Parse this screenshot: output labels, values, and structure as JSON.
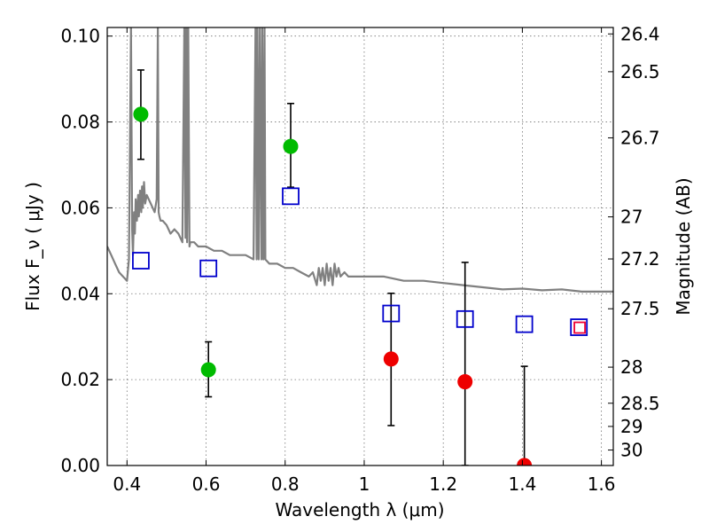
{
  "chart_data": {
    "type": "scatter",
    "xlabel": "Wavelength  λ (μm)",
    "ylabel": "Flux  F_ν  ( μJy )",
    "ylabel_right": "Magnitude (AB)",
    "xlim": [
      0.35,
      1.63
    ],
    "ylim": [
      0.0,
      0.102
    ],
    "grid": true,
    "x_ticks": [
      0.4,
      0.6,
      0.8,
      1.0,
      1.2,
      1.4,
      1.6
    ],
    "x_tick_labels": [
      "0.4",
      "0.6",
      "0.8",
      "1",
      "1.2",
      "1.4",
      "1.6"
    ],
    "y_ticks": [
      0.0,
      0.02,
      0.04,
      0.06,
      0.08,
      0.1
    ],
    "y_tick_labels": [
      "0.00",
      "0.02",
      "0.04",
      "0.06",
      "0.08",
      "0.10"
    ],
    "mag_ticks": [
      {
        "label": "26.4",
        "flux": 0.1005
      },
      {
        "label": "26.5",
        "flux": 0.0917
      },
      {
        "label": "26.7",
        "flux": 0.0763
      },
      {
        "label": "27",
        "flux": 0.0579
      },
      {
        "label": "27.2",
        "flux": 0.0481
      },
      {
        "label": "27.5",
        "flux": 0.0365
      },
      {
        "label": "28",
        "flux": 0.0229
      },
      {
        "label": "28.5",
        "flux": 0.0145
      },
      {
        "label": "29",
        "flux": 0.0091
      },
      {
        "label": "30",
        "flux": 0.0036
      }
    ],
    "series": [
      {
        "marker": "filled-circle",
        "color": "#00bb00",
        "points": [
          {
            "x": 0.435,
            "y": 0.0818,
            "err_low": 0.0713,
            "err_high": 0.0921
          },
          {
            "x": 0.606,
            "y": 0.0223,
            "err_low": 0.016,
            "err_high": 0.0288
          },
          {
            "x": 0.814,
            "y": 0.0743,
            "err_low": 0.0648,
            "err_high": 0.0843
          }
        ]
      },
      {
        "marker": "filled-circle",
        "color": "#ee0000",
        "points": [
          {
            "x": 1.068,
            "y": 0.0248,
            "err_low": 0.0093,
            "err_high": 0.0401
          },
          {
            "x": 1.255,
            "y": 0.0195,
            "err_low": 0.0,
            "err_high": 0.0473
          },
          {
            "x": 1.405,
            "y": 0.0,
            "err_low": 0.0,
            "err_high": 0.0231
          }
        ]
      },
      {
        "marker": "open-square",
        "color": "#0000cc",
        "points": [
          {
            "x": 0.435,
            "y": 0.0477
          },
          {
            "x": 0.606,
            "y": 0.0459
          },
          {
            "x": 0.814,
            "y": 0.0627
          },
          {
            "x": 1.068,
            "y": 0.0354
          },
          {
            "x": 1.255,
            "y": 0.0341
          },
          {
            "x": 1.405,
            "y": 0.0329
          },
          {
            "x": 1.543,
            "y": 0.0322
          }
        ]
      },
      {
        "marker": "open-square-small",
        "color": "#ee0033",
        "points": [
          {
            "x": 1.545,
            "y": 0.0321
          }
        ]
      }
    ],
    "spectrum": {
      "color": "#808080",
      "x": [
        0.35,
        0.36,
        0.37,
        0.38,
        0.39,
        0.4,
        0.405,
        0.41,
        0.413,
        0.415,
        0.418,
        0.42,
        0.422,
        0.425,
        0.428,
        0.43,
        0.433,
        0.436,
        0.438,
        0.44,
        0.443,
        0.446,
        0.45,
        0.455,
        0.46,
        0.465,
        0.47,
        0.475,
        0.478,
        0.48,
        0.482,
        0.485,
        0.49,
        0.5,
        0.51,
        0.52,
        0.53,
        0.54,
        0.545,
        0.548,
        0.55,
        0.552,
        0.555,
        0.558,
        0.56,
        0.57,
        0.58,
        0.6,
        0.62,
        0.64,
        0.66,
        0.68,
        0.7,
        0.72,
        0.725,
        0.728,
        0.73,
        0.733,
        0.736,
        0.74,
        0.742,
        0.745,
        0.748,
        0.75,
        0.76,
        0.78,
        0.8,
        0.82,
        0.84,
        0.86,
        0.87,
        0.88,
        0.885,
        0.89,
        0.895,
        0.9,
        0.905,
        0.91,
        0.915,
        0.92,
        0.925,
        0.93,
        0.935,
        0.94,
        0.95,
        0.96,
        0.98,
        1.0,
        1.05,
        1.1,
        1.15,
        1.2,
        1.25,
        1.3,
        1.35,
        1.4,
        1.45,
        1.5,
        1.55,
        1.6,
        1.63
      ],
      "y": [
        0.051,
        0.049,
        0.047,
        0.045,
        0.044,
        0.043,
        0.048,
        0.102,
        0.055,
        0.049,
        0.059,
        0.054,
        0.062,
        0.057,
        0.063,
        0.058,
        0.064,
        0.059,
        0.065,
        0.06,
        0.066,
        0.061,
        0.063,
        0.062,
        0.061,
        0.06,
        0.059,
        0.062,
        0.102,
        0.059,
        0.058,
        0.057,
        0.057,
        0.056,
        0.054,
        0.055,
        0.054,
        0.052,
        0.102,
        0.053,
        0.102,
        0.052,
        0.102,
        0.051,
        0.052,
        0.052,
        0.051,
        0.051,
        0.05,
        0.05,
        0.049,
        0.049,
        0.049,
        0.048,
        0.102,
        0.048,
        0.102,
        0.048,
        0.102,
        0.048,
        0.102,
        0.048,
        0.102,
        0.048,
        0.047,
        0.047,
        0.046,
        0.046,
        0.045,
        0.044,
        0.045,
        0.042,
        0.046,
        0.043,
        0.046,
        0.042,
        0.047,
        0.043,
        0.046,
        0.042,
        0.047,
        0.044,
        0.046,
        0.044,
        0.045,
        0.044,
        0.044,
        0.044,
        0.044,
        0.043,
        0.043,
        0.0425,
        0.042,
        0.0415,
        0.041,
        0.0412,
        0.0408,
        0.041,
        0.0405,
        0.0405,
        0.0405
      ]
    }
  }
}
